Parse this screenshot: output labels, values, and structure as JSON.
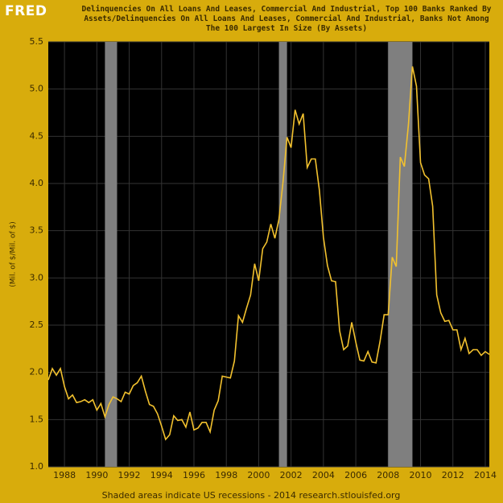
{
  "chart_data": {
    "type": "line",
    "logo": "FRED",
    "title": "Delinquencies On All Loans And Leases, Commercial And Industrial, Top 100 Banks Ranked By Assets/Delinquencies On All Loans And Leases, Commercial And Industrial, Banks Not Among The 100 Largest In Size (By Assets)",
    "y_label": "(Mil. of $/Mil. of $)",
    "footer": "Shaded areas indicate US recessions - 2014 research.stlouisfed.org",
    "xlim": [
      1987,
      2014.25
    ],
    "xticks": [
      1988,
      1990,
      1992,
      1994,
      1996,
      1998,
      2000,
      2002,
      2004,
      2006,
      2008,
      2010,
      2012,
      2014
    ],
    "ylim": [
      1,
      5.5
    ],
    "yticks": [
      {
        "value": 1,
        "label": "1.0"
      },
      1.5,
      {
        "value": 2,
        "label": "2.0"
      },
      2.5,
      {
        "value": 3,
        "label": "3.0"
      },
      3.5,
      {
        "value": 4,
        "label": "4.0"
      },
      4.5,
      {
        "value": 5,
        "label": "5.0"
      },
      5.5
    ],
    "grid": true,
    "recessions": [
      [
        1990.5,
        1991.25
      ],
      [
        2001.25,
        2001.75
      ],
      [
        2008,
        2009.5
      ]
    ],
    "x": [
      1987,
      1987.25,
      1987.5,
      1987.75,
      1988,
      1988.25,
      1988.5,
      1988.75,
      1989,
      1989.25,
      1989.5,
      1989.75,
      1990,
      1990.25,
      1990.5,
      1990.75,
      1991,
      1991.25,
      1991.5,
      1991.75,
      1992,
      1992.25,
      1992.5,
      1992.75,
      1993,
      1993.25,
      1993.5,
      1993.75,
      1994,
      1994.25,
      1994.5,
      1994.75,
      1995,
      1995.25,
      1995.5,
      1995.75,
      1996,
      1996.25,
      1996.5,
      1996.75,
      1997,
      1997.25,
      1997.5,
      1997.75,
      1998,
      1998.25,
      1998.5,
      1998.75,
      1999,
      1999.25,
      1999.5,
      1999.75,
      2000,
      2000.25,
      2000.5,
      2000.75,
      2001,
      2001.25,
      2001.5,
      2001.75,
      2002,
      2002.25,
      2002.5,
      2002.75,
      2003,
      2003.25,
      2003.5,
      2003.75,
      2004,
      2004.25,
      2004.5,
      2004.75,
      2005,
      2005.25,
      2005.5,
      2005.75,
      2006,
      2006.25,
      2006.5,
      2006.75,
      2007,
      2007.25,
      2007.5,
      2007.75,
      2008,
      2008.25,
      2008.5,
      2008.75,
      2009,
      2009.25,
      2009.5,
      2009.75,
      2010,
      2010.25,
      2010.5,
      2010.75,
      2011,
      2011.25,
      2011.5,
      2011.75,
      2012,
      2012.25,
      2012.5,
      2012.75,
      2013,
      2013.25,
      2013.5,
      2013.75,
      2014,
      2014.25
    ],
    "series": [
      {
        "color": "#f2c12e",
        "values": [
          1.92,
          2.04,
          1.97,
          2.04,
          1.85,
          1.72,
          1.76,
          1.68,
          1.69,
          1.71,
          1.68,
          1.71,
          1.6,
          1.67,
          1.53,
          1.66,
          1.74,
          1.72,
          1.69,
          1.79,
          1.77,
          1.86,
          1.89,
          1.96,
          1.8,
          1.66,
          1.64,
          1.56,
          1.43,
          1.29,
          1.34,
          1.54,
          1.49,
          1.5,
          1.42,
          1.58,
          1.39,
          1.41,
          1.47,
          1.47,
          1.37,
          1.6,
          1.7,
          1.96,
          1.95,
          1.94,
          2.12,
          2.6,
          2.53,
          2.68,
          2.82,
          3.15,
          2.97,
          3.31,
          3.38,
          3.57,
          3.42,
          3.62,
          4.01,
          4.49,
          4.38,
          4.78,
          4.63,
          4.74,
          4.17,
          4.26,
          4.26,
          3.93,
          3.43,
          3.13,
          2.97,
          2.96,
          2.44,
          2.24,
          2.28,
          2.53,
          2.32,
          2.13,
          2.12,
          2.22,
          2.11,
          2.1,
          2.33,
          2.61,
          2.61,
          3.22,
          3.12,
          4.28,
          4.18,
          4.62,
          5.24,
          5.03,
          4.22,
          4.09,
          4.05,
          3.76,
          2.82,
          2.63,
          2.54,
          2.55,
          2.45,
          2.45,
          2.24,
          2.36,
          2.2,
          2.24,
          2.24,
          2.18,
          2.22,
          2.19
        ]
      }
    ]
  }
}
